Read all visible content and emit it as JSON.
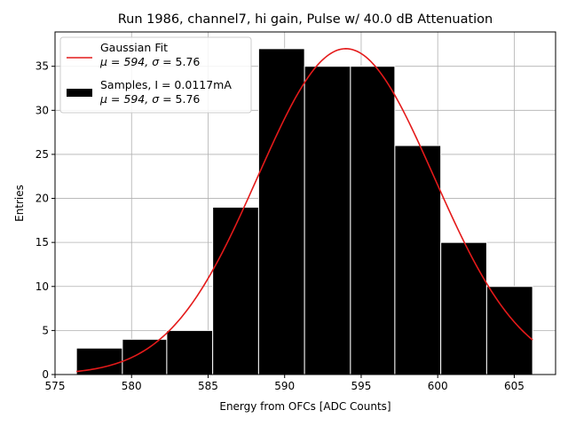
{
  "chart_data": {
    "type": "histogram",
    "title": "Run 1986, channel7, hi gain, Pulse w/ 40.0 dB Attenuation",
    "xlabel": "Energy from OFCs [ADC Counts]",
    "ylabel": "Entries",
    "xlim": [
      575,
      607.7
    ],
    "ylim": [
      0,
      38.9
    ],
    "xticks": [
      575,
      580,
      585,
      590,
      595,
      600,
      605
    ],
    "yticks": [
      0,
      5,
      10,
      15,
      20,
      25,
      30,
      35
    ],
    "grid": true,
    "bins": [
      {
        "x0": 576.4,
        "x1": 579.4,
        "count": 3
      },
      {
        "x0": 579.4,
        "x1": 582.3,
        "count": 4
      },
      {
        "x0": 582.3,
        "x1": 585.3,
        "count": 5
      },
      {
        "x0": 585.3,
        "x1": 588.3,
        "count": 19
      },
      {
        "x0": 588.3,
        "x1": 591.3,
        "count": 37
      },
      {
        "x0": 591.3,
        "x1": 594.3,
        "count": 35
      },
      {
        "x0": 594.3,
        "x1": 597.2,
        "count": 35
      },
      {
        "x0": 597.2,
        "x1": 600.2,
        "count": 26
      },
      {
        "x0": 600.2,
        "x1": 603.2,
        "count": 15
      },
      {
        "x0": 603.2,
        "x1": 606.2,
        "count": 10
      }
    ],
    "fit": {
      "mu": 594,
      "sigma": 5.76,
      "amplitude": 37.0,
      "x_range": [
        576.4,
        606.2
      ]
    },
    "colors": {
      "bars": "#000000",
      "bar_edge": "#ffffff",
      "fit": "#e41a1a",
      "grid": "#b0b0b0"
    },
    "legend": {
      "location": "upper-left",
      "entries": [
        {
          "line1": "Gaussian Fit",
          "line2_prefix": "μ = 594, ",
          "line2_sigma": "σ",
          "line2_suffix": " = 5.76",
          "swatch": "line"
        },
        {
          "line1": "Samples, I = 0.0117mA",
          "line2_prefix": "μ = 594, ",
          "line2_sigma": "σ",
          "line2_suffix": " = 5.76",
          "swatch": "patch"
        }
      ]
    }
  }
}
